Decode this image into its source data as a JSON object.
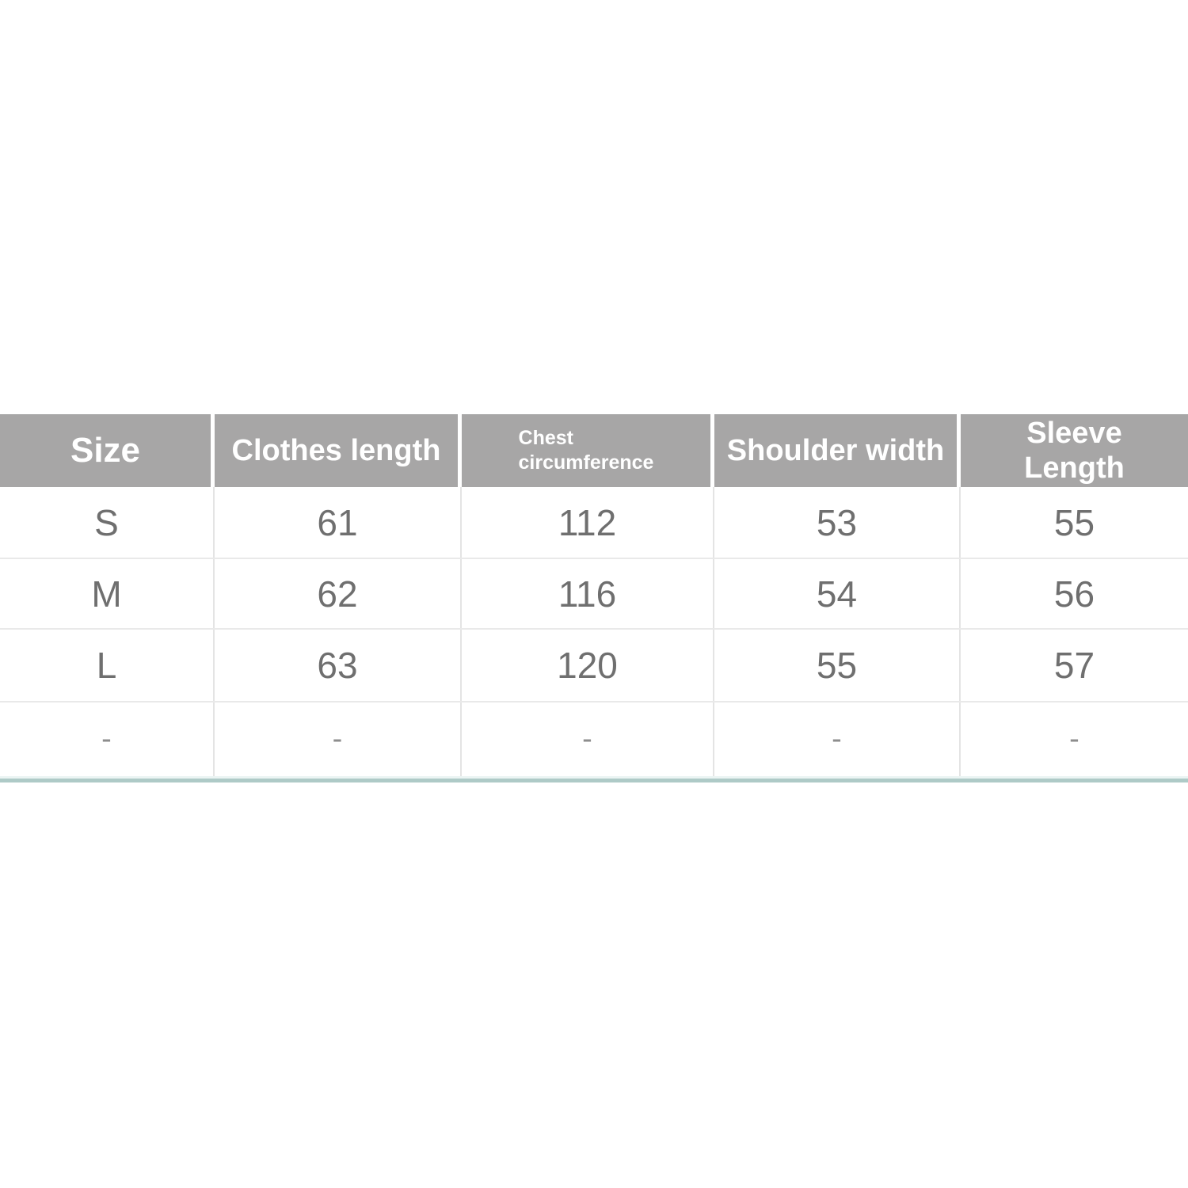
{
  "colors": {
    "header_background": "#a7a6a6",
    "header_text": "#ffffff",
    "body_text": "#6f6f6f",
    "row_separator": "#e9e9e9",
    "column_separator": "#e4e4e4",
    "bottom_accent": "#aecac7",
    "bottom_accent_light": "#ebf4f3",
    "page_background": "#ffffff"
  },
  "chart_data": {
    "type": "table",
    "columns": [
      "Size",
      "Clothes length",
      "Chest circumference",
      "Shoulder width",
      "Sleeve Length"
    ],
    "display_columns": [
      "Size",
      "Clothes length",
      "Chest\ncircumference",
      "Shoulder width",
      "Sleeve\nLength"
    ],
    "rows": [
      [
        "S",
        "61",
        "112",
        "53",
        "55"
      ],
      [
        "M",
        "62",
        "116",
        "54",
        "56"
      ],
      [
        "L",
        "63",
        "120",
        "55",
        "57"
      ],
      [
        "-",
        "-",
        "-",
        "-",
        "-"
      ]
    ]
  }
}
